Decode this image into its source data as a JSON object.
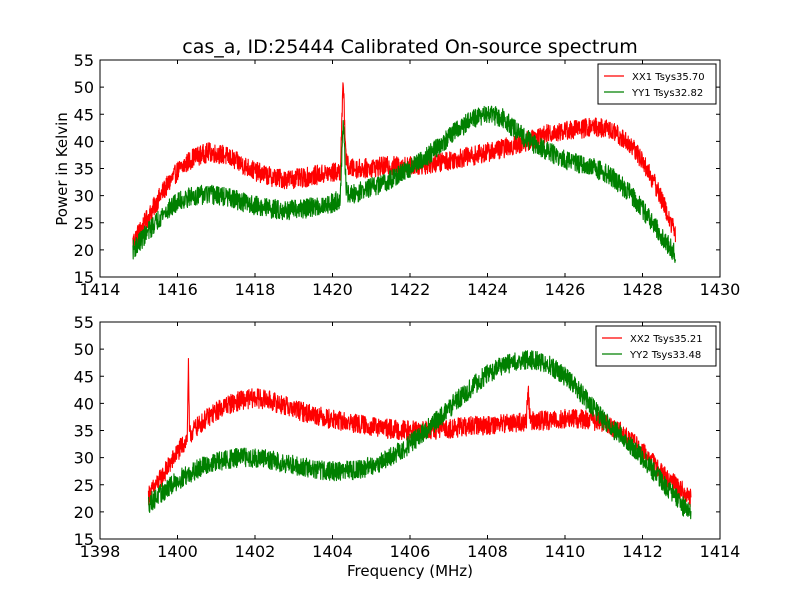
{
  "figure": {
    "title": "cas_a, ID:25444 Calibrated On-source spectrum",
    "ylabel": "Power in Kelvin",
    "xlabel": "Frequency (MHz)"
  },
  "chart_data": [
    {
      "type": "line",
      "xlim": [
        1414,
        1430
      ],
      "ylim": [
        15,
        55
      ],
      "xticks": [
        "1414",
        "1416",
        "1418",
        "1420",
        "1422",
        "1424",
        "1426",
        "1428",
        "1430"
      ],
      "yticks": [
        "15",
        "20",
        "25",
        "30",
        "35",
        "40",
        "45",
        "50",
        "55"
      ],
      "legend_position": "top-right",
      "series": [
        {
          "name": "XX1 Tsys35.70",
          "color": "#ff0000",
          "noise": 0.9,
          "x": [
            1414.85,
            1415.2,
            1415.6,
            1416.0,
            1416.4,
            1416.8,
            1417.2,
            1417.6,
            1418.0,
            1418.4,
            1418.8,
            1419.2,
            1419.6,
            1420.0,
            1420.2,
            1420.28,
            1420.32,
            1420.36,
            1420.45,
            1420.8,
            1421.2,
            1421.6,
            1422.0,
            1422.4,
            1422.8,
            1423.2,
            1423.6,
            1424.0,
            1424.4,
            1424.8,
            1425.2,
            1425.6,
            1426.0,
            1426.4,
            1426.8,
            1427.2,
            1427.6,
            1428.0,
            1428.4,
            1428.85
          ],
          "y": [
            21.5,
            25.5,
            30.5,
            34.5,
            37.0,
            38.0,
            37.5,
            36.0,
            34.5,
            33.5,
            33.0,
            33.2,
            33.8,
            34.2,
            34.5,
            51.5,
            42.0,
            36.0,
            35.0,
            35.0,
            35.3,
            35.5,
            35.5,
            35.7,
            36.2,
            36.8,
            37.3,
            38.0,
            38.7,
            39.5,
            40.5,
            41.5,
            42.0,
            42.3,
            42.7,
            42.0,
            40.0,
            36.5,
            31.0,
            23.0
          ]
        },
        {
          "name": "YY1 Tsys32.82",
          "color": "#008000",
          "noise": 0.9,
          "x": [
            1414.85,
            1415.2,
            1415.6,
            1416.0,
            1416.4,
            1416.8,
            1417.2,
            1417.6,
            1418.0,
            1418.4,
            1418.8,
            1419.2,
            1419.6,
            1420.0,
            1420.2,
            1420.28,
            1420.32,
            1420.36,
            1420.45,
            1420.8,
            1421.2,
            1421.6,
            1422.0,
            1422.4,
            1422.8,
            1423.2,
            1423.6,
            1424.0,
            1424.4,
            1424.8,
            1425.2,
            1425.6,
            1426.0,
            1426.4,
            1426.8,
            1427.2,
            1427.6,
            1428.0,
            1428.4,
            1428.85
          ],
          "y": [
            20.0,
            23.0,
            26.5,
            28.8,
            30.0,
            30.2,
            29.8,
            29.0,
            28.2,
            27.6,
            27.3,
            27.5,
            28.0,
            28.6,
            29.5,
            44.0,
            36.0,
            31.0,
            30.0,
            31.0,
            32.0,
            33.3,
            35.0,
            37.0,
            39.5,
            42.0,
            44.0,
            45.0,
            44.3,
            41.5,
            39.5,
            38.0,
            36.5,
            35.8,
            35.0,
            33.5,
            31.0,
            27.5,
            23.5,
            19.0
          ]
        }
      ]
    },
    {
      "type": "line",
      "xlim": [
        1398,
        1414
      ],
      "ylim": [
        15,
        55
      ],
      "xticks": [
        "1398",
        "1400",
        "1402",
        "1404",
        "1406",
        "1408",
        "1410",
        "1412",
        "1414"
      ],
      "yticks": [
        "15",
        "20",
        "25",
        "30",
        "35",
        "40",
        "45",
        "50",
        "55"
      ],
      "legend_position": "top-right",
      "series": [
        {
          "name": "XX2 Tsys35.21",
          "color": "#ff0000",
          "noise": 0.9,
          "x": [
            1399.25,
            1399.6,
            1400.0,
            1400.2,
            1400.25,
            1400.28,
            1400.31,
            1400.4,
            1400.8,
            1401.2,
            1401.6,
            1402.0,
            1402.4,
            1402.8,
            1403.2,
            1403.6,
            1404.0,
            1404.4,
            1404.8,
            1405.2,
            1405.6,
            1406.0,
            1406.4,
            1406.8,
            1407.2,
            1407.6,
            1408.0,
            1408.4,
            1408.8,
            1409.0,
            1409.05,
            1409.1,
            1409.4,
            1409.8,
            1410.2,
            1410.6,
            1411.0,
            1411.4,
            1411.8,
            1412.2,
            1412.6,
            1413.25
          ],
          "y": [
            23.0,
            26.5,
            31.0,
            33.0,
            33.5,
            47.5,
            34.0,
            35.0,
            37.5,
            39.5,
            40.5,
            41.0,
            40.5,
            39.5,
            38.5,
            37.8,
            37.0,
            36.5,
            36.0,
            35.5,
            35.2,
            35.0,
            35.0,
            35.2,
            35.5,
            35.8,
            36.0,
            36.3,
            36.5,
            36.5,
            43.0,
            36.7,
            36.8,
            37.0,
            37.2,
            37.0,
            36.5,
            35.0,
            32.5,
            29.5,
            26.5,
            22.5
          ]
        },
        {
          "name": "YY2 Tsys33.48",
          "color": "#008000",
          "noise": 0.9,
          "x": [
            1399.25,
            1399.6,
            1400.0,
            1400.4,
            1400.8,
            1401.2,
            1401.6,
            1402.0,
            1402.4,
            1402.8,
            1403.2,
            1403.6,
            1404.0,
            1404.4,
            1404.8,
            1405.2,
            1405.6,
            1406.0,
            1406.4,
            1406.8,
            1407.2,
            1407.6,
            1408.0,
            1408.4,
            1408.8,
            1409.2,
            1409.6,
            1410.0,
            1410.4,
            1410.8,
            1411.2,
            1411.6,
            1412.0,
            1412.4,
            1412.8,
            1413.25
          ],
          "y": [
            21.5,
            23.5,
            25.8,
            27.5,
            28.8,
            29.5,
            30.0,
            30.0,
            29.5,
            29.0,
            28.3,
            27.8,
            27.5,
            27.6,
            28.0,
            29.0,
            30.5,
            32.5,
            35.0,
            37.5,
            40.5,
            43.0,
            45.5,
            47.0,
            48.0,
            48.0,
            47.0,
            45.0,
            42.0,
            38.5,
            35.5,
            33.0,
            30.0,
            26.5,
            23.0,
            19.5
          ]
        }
      ]
    }
  ]
}
